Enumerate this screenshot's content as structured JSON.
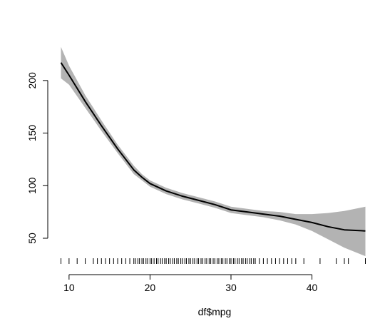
{
  "chart_data": {
    "type": "line",
    "title": "",
    "xlabel": "df$mpg",
    "ylabel": "",
    "xlim": [
      9,
      46.6
    ],
    "ylim": [
      50,
      225
    ],
    "x_ticks": [
      10,
      20,
      30,
      40
    ],
    "y_ticks": [
      50,
      100,
      150,
      200
    ],
    "grid": false,
    "series": [
      {
        "x": [
          9,
          10,
          12,
          14,
          16,
          18,
          19,
          20,
          22,
          24,
          26,
          28,
          30,
          32,
          34,
          36,
          38,
          40,
          42,
          44,
          46.6
        ],
        "y": [
          217,
          205,
          180,
          157,
          135,
          115,
          108,
          102,
          95,
          90,
          86,
          82,
          77,
          75,
          73,
          71,
          68,
          65,
          61,
          58,
          57
        ],
        "upper": [
          232,
          214,
          186,
          162,
          139,
          119,
          111,
          105,
          98,
          93,
          89,
          85,
          80,
          78,
          76,
          75,
          73,
          73,
          74,
          76,
          80
        ],
        "lower": [
          202,
          196,
          174,
          152,
          131,
          111,
          105,
          99,
          92,
          87,
          83,
          79,
          74,
          72,
          70,
          67,
          63,
          57,
          49,
          41,
          33
        ]
      }
    ],
    "rug": [
      9,
      10,
      11,
      12,
      13,
      13.5,
      14,
      14.5,
      15,
      15.5,
      16,
      16.5,
      17,
      17.5,
      18,
      18.2,
      18.5,
      18.7,
      19,
      19.2,
      19.5,
      19.7,
      20,
      20.2,
      20.5,
      20.8,
      21,
      21.3,
      21.5,
      21.8,
      22,
      22.3,
      22.5,
      22.8,
      23,
      23.3,
      23.5,
      23.8,
      24,
      24.3,
      24.5,
      24.8,
      25,
      25.3,
      25.5,
      25.8,
      26,
      26.3,
      26.5,
      26.8,
      27,
      27.3,
      27.5,
      27.8,
      28,
      28.3,
      28.5,
      28.8,
      29,
      29.3,
      29.5,
      29.8,
      30,
      30.3,
      30.5,
      30.8,
      31,
      31.3,
      31.5,
      31.8,
      32,
      32.3,
      32.5,
      32.8,
      33,
      33.5,
      34,
      34.5,
      35,
      35.5,
      36,
      36.5,
      37,
      37.5,
      38,
      39,
      41,
      43,
      44,
      44.5,
      46.6
    ]
  }
}
